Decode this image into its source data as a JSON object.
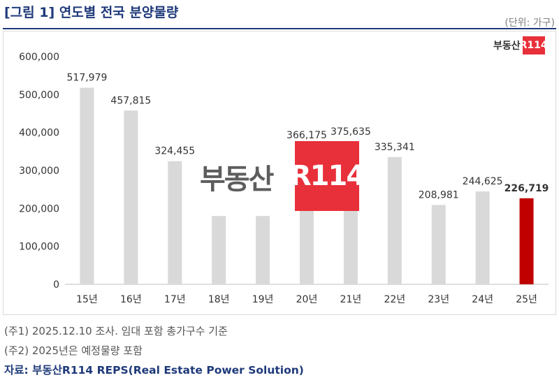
{
  "header": {
    "title": "[그림 1] 연도별 전국 분양물량",
    "unit": "(단위: 가구)"
  },
  "logo": {
    "text": "부동산",
    "box_text": "R114"
  },
  "watermark": {
    "text": "부동산",
    "box_text": "R114"
  },
  "notes": [
    "(주1) 2025.12.10 조사. 임대 포함 총가구수 기준",
    "(주2) 2025년은 예정물량 포함"
  ],
  "source": "자료: 부동산R114 REPS(Real Estate Power Solution)",
  "colors": {
    "bar": "#d9d9d9",
    "highlight": "#c00000",
    "title": "#1f3a7a",
    "brand": "#e8303a"
  },
  "chart_data": {
    "type": "bar",
    "title": "연도별 전국 분양물량",
    "xlabel": "",
    "ylabel": "",
    "categories": [
      "15년",
      "16년",
      "17년",
      "18년",
      "19년",
      "20년",
      "21년",
      "22년",
      "23년",
      "24년",
      "25년"
    ],
    "values": [
      517979,
      457815,
      324455,
      180000,
      180000,
      366175,
      375635,
      335341,
      208981,
      244625,
      226719
    ],
    "data_labels": [
      "517,979",
      "457,815",
      "324,455",
      "",
      "",
      "366,175",
      "375,635",
      "335,341",
      "208,981",
      "244,625",
      "226,719"
    ],
    "highlight_index": 10,
    "ylim": [
      0,
      600000
    ],
    "yticks": [
      0,
      100000,
      200000,
      300000,
      400000,
      500000,
      600000
    ],
    "ytick_labels": [
      "0",
      "100,000",
      "200,000",
      "300,000",
      "400,000",
      "500,000",
      "600,000"
    ],
    "grid": false,
    "legend": "none"
  }
}
